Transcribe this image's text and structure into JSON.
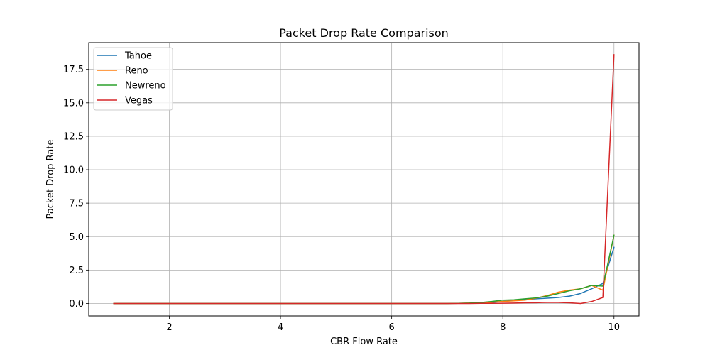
{
  "chart_data": {
    "type": "line",
    "title": "Packet Drop Rate Comparison",
    "xlabel": "CBR Flow Rate",
    "ylabel": "Packet Drop Rate",
    "xlim": [
      0.55,
      10.45
    ],
    "ylim": [
      -0.93,
      19.5
    ],
    "xticks": [
      2,
      4,
      6,
      8,
      10
    ],
    "xtick_labels": [
      "2",
      "4",
      "6",
      "8",
      "10"
    ],
    "yticks": [
      0.0,
      2.5,
      5.0,
      7.5,
      10.0,
      12.5,
      15.0,
      17.5
    ],
    "ytick_labels": [
      "0.0",
      "2.5",
      "5.0",
      "7.5",
      "10.0",
      "12.5",
      "15.0",
      "17.5"
    ],
    "grid": true,
    "legend_position": "upper-left",
    "x": [
      1.0,
      1.2,
      1.4,
      1.6,
      1.8,
      2.0,
      2.2,
      2.4,
      2.6,
      2.8,
      3.0,
      3.2,
      3.4,
      3.6,
      3.8,
      4.0,
      4.2,
      4.4,
      4.6,
      4.8,
      5.0,
      5.2,
      5.4,
      5.6,
      5.8,
      6.0,
      6.2,
      6.4,
      6.6,
      6.8,
      7.0,
      7.2,
      7.4,
      7.6,
      7.8,
      8.0,
      8.2,
      8.4,
      8.6,
      8.8,
      9.0,
      9.2,
      9.4,
      9.6,
      9.8,
      10.0
    ],
    "series": [
      {
        "name": "Tahoe",
        "color": "#1f77b4",
        "values": [
          0,
          0,
          0,
          0,
          0,
          0,
          0,
          0,
          0,
          0,
          0,
          0,
          0,
          0,
          0,
          0,
          0,
          0,
          0,
          0,
          0,
          0,
          0,
          0,
          0,
          0,
          0,
          0,
          0,
          0,
          0,
          0.01,
          0.02,
          0.04,
          0.08,
          0.15,
          0.25,
          0.3,
          0.35,
          0.4,
          0.45,
          0.55,
          0.75,
          1.1,
          1.5,
          4.2
        ]
      },
      {
        "name": "Reno",
        "color": "#ff7f0e",
        "values": [
          0,
          0,
          0,
          0,
          0,
          0,
          0,
          0,
          0,
          0,
          0,
          0,
          0,
          0,
          0,
          0,
          0,
          0,
          0,
          0,
          0,
          0,
          0,
          0,
          0,
          0,
          0,
          0,
          0,
          0,
          0,
          0.01,
          0.03,
          0.05,
          0.1,
          0.15,
          0.2,
          0.25,
          0.4,
          0.6,
          0.85,
          1.0,
          1.1,
          1.35,
          1.0,
          5.1
        ]
      },
      {
        "name": "Newreno",
        "color": "#2ca02c",
        "values": [
          0,
          0,
          0,
          0,
          0,
          0,
          0,
          0,
          0,
          0,
          0,
          0,
          0,
          0,
          0,
          0,
          0,
          0,
          0,
          0,
          0,
          0,
          0,
          0,
          0,
          0,
          0,
          0,
          0,
          0,
          0,
          0.01,
          0.03,
          0.07,
          0.15,
          0.25,
          0.28,
          0.35,
          0.42,
          0.55,
          0.75,
          0.95,
          1.1,
          1.35,
          1.3,
          5.1
        ]
      },
      {
        "name": "Vegas",
        "color": "#d62728",
        "values": [
          0,
          0,
          0,
          0,
          0,
          0,
          0,
          0,
          0,
          0,
          0,
          0,
          0,
          0,
          0,
          0,
          0,
          0,
          0,
          0,
          0,
          0,
          0,
          0,
          0,
          0,
          0,
          0,
          0,
          0,
          0,
          0,
          0,
          0.01,
          0.01,
          0.02,
          0.03,
          0.05,
          0.06,
          0.08,
          0.08,
          0.05,
          0.0,
          0.15,
          0.45,
          18.6
        ]
      }
    ]
  }
}
